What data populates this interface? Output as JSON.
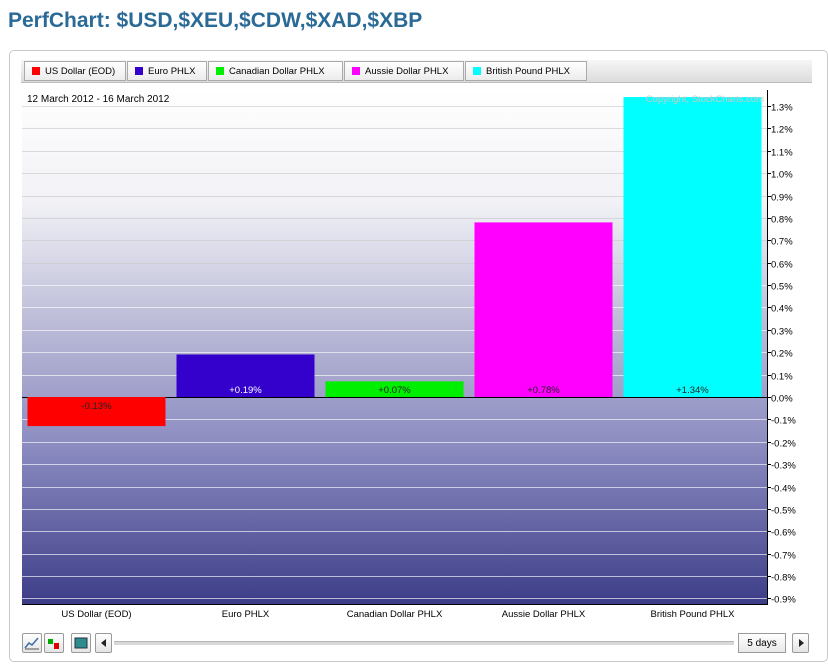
{
  "page": {
    "title": "PerfChart: $USD,$XEU,$CDW,$XAD,$XBP"
  },
  "chart_data": {
    "type": "bar",
    "categories": [
      "US Dollar (EOD)",
      "Euro PHLX",
      "Canadian Dollar PHLX",
      "Aussie Dollar PHLX",
      "British Pound PHLX"
    ],
    "values": [
      -0.13,
      0.19,
      0.07,
      0.78,
      1.34
    ],
    "value_labels": [
      "-0.13%",
      "+0.19%",
      "+0.07%",
      "+0.78%",
      "+1.34%"
    ],
    "colors": [
      "#ff0000",
      "#3300cc",
      "#00ee00",
      "#ff00ff",
      "#00ffff"
    ],
    "date_range": "12 March 2012 - 16 March 2012",
    "watermark": "Copyright, StockCharts.com",
    "ylim": [
      -0.95,
      1.35
    ],
    "yticks": [
      1.3,
      1.2,
      1.1,
      1.0,
      0.9,
      0.8,
      0.7,
      0.6,
      0.5,
      0.4,
      0.3,
      0.2,
      0.1,
      0.0,
      -0.1,
      -0.2,
      -0.3,
      -0.4,
      -0.5,
      -0.6,
      -0.7,
      -0.8,
      -0.9
    ],
    "ytick_labels": [
      "1.3%",
      "1.2%",
      "1.1%",
      "1.0%",
      "0.9%",
      "0.8%",
      "0.7%",
      "0.6%",
      "0.5%",
      "0.4%",
      "0.3%",
      "0.2%",
      "0.1%",
      "0.0%",
      "-0.1%",
      "-0.2%",
      "-0.3%",
      "-0.4%",
      "-0.5%",
      "-0.6%",
      "-0.7%",
      "-0.8%",
      "-0.9%"
    ],
    "grid": true,
    "legend": [
      {
        "label": "US Dollar (EOD)",
        "color": "#ff0000"
      },
      {
        "label": "Euro PHLX",
        "color": "#3300cc"
      },
      {
        "label": "Canadian Dollar PHLX",
        "color": "#00ee00"
      },
      {
        "label": "Aussie Dollar PHLX",
        "color": "#ff00ff"
      },
      {
        "label": "British Pound PHLX",
        "color": "#00ffff"
      }
    ],
    "legend_position": "top"
  },
  "toolbar": {
    "period_label": "5 days",
    "icons": [
      "line-chart-icon",
      "bar-chart-icon",
      "histogram-icon",
      "arrow-left-icon",
      "arrow-right-icon"
    ]
  }
}
